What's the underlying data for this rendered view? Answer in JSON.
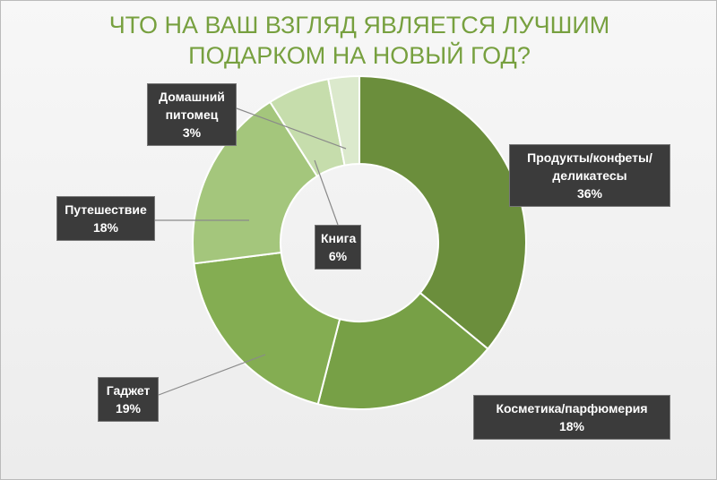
{
  "chart_data": {
    "type": "donut",
    "title": "ЧТО НА ВАШ ВЗГЛЯД ЯВЛЯЕТСЯ ЛУЧШИМ ПОДАРКОМ НА НОВЫЙ ГОД?",
    "categories": [
      "Продукты/конфеты/\nделикатесы",
      "Косметика/парфюмерия",
      "Гаджет",
      "Путешествие",
      "Книга",
      "Домашний питомец"
    ],
    "values": [
      36,
      18,
      19,
      18,
      6,
      3
    ],
    "value_labels": [
      "36%",
      "18%",
      "19%",
      "18%",
      "6%",
      "3%"
    ],
    "colors": [
      "#6b8e3c",
      "#77a046",
      "#84ad52",
      "#a4c67c",
      "#c6ddac",
      "#dbe9cc"
    ]
  }
}
